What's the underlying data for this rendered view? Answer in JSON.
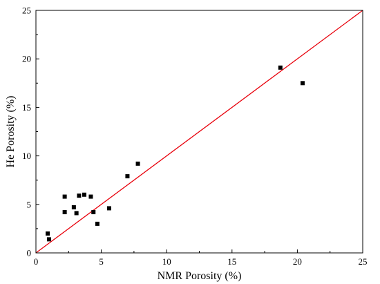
{
  "chart_data": {
    "type": "scatter",
    "title": "",
    "xlabel": "NMR Porosity (%)",
    "ylabel": "He Porosity (%)",
    "xlim": [
      0,
      25
    ],
    "ylim": [
      0,
      25
    ],
    "x_ticks": [
      0,
      5,
      10,
      15,
      20,
      25
    ],
    "y_ticks": [
      0,
      5,
      10,
      15,
      20,
      25
    ],
    "grid": false,
    "legend": "none",
    "series": [
      {
        "marker": "square",
        "color": "#000000",
        "points": [
          {
            "x": 0.9,
            "y": 2.0
          },
          {
            "x": 1.0,
            "y": 1.4
          },
          {
            "x": 2.2,
            "y": 5.8
          },
          {
            "x": 2.2,
            "y": 4.2
          },
          {
            "x": 2.9,
            "y": 4.7
          },
          {
            "x": 3.1,
            "y": 4.1
          },
          {
            "x": 3.3,
            "y": 5.9
          },
          {
            "x": 3.7,
            "y": 6.0
          },
          {
            "x": 4.2,
            "y": 5.8
          },
          {
            "x": 4.4,
            "y": 4.2
          },
          {
            "x": 4.7,
            "y": 3.0
          },
          {
            "x": 5.6,
            "y": 4.6
          },
          {
            "x": 7.0,
            "y": 7.9
          },
          {
            "x": 7.8,
            "y": 9.2
          },
          {
            "x": 18.7,
            "y": 19.1
          },
          {
            "x": 20.4,
            "y": 17.5
          }
        ]
      }
    ],
    "reference_line": {
      "from": [
        0,
        0
      ],
      "to": [
        25,
        25
      ],
      "color": "#e8000b"
    }
  }
}
